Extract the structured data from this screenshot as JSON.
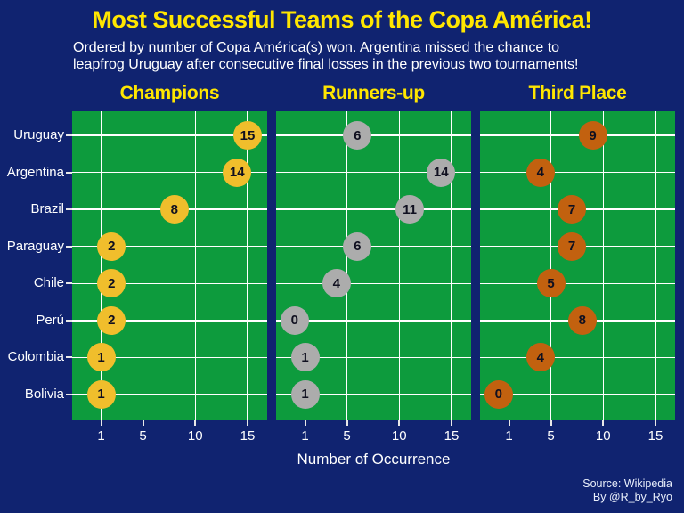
{
  "header": {
    "title": "Most Successful Teams of the Copa América!",
    "subtitle_line1": "Ordered by number of Copa América(s) won. Argentina missed the chance to",
    "subtitle_line2": "leapfrog Uruguay after consecutive final losses in the previous two tournaments!"
  },
  "chart_data": {
    "type": "scatter",
    "title": "Most Successful Teams of the Copa América!",
    "subtitle": "Ordered by number of Copa América(s) won. Argentina missed the chance to leapfrog Uruguay after consecutive final losses in the previous two tournaments!",
    "xlabel": "Number of Occurrence",
    "categories": [
      "Uruguay",
      "Argentina",
      "Brazil",
      "Paraguay",
      "Chile",
      "Perú",
      "Colombia",
      "Bolivia"
    ],
    "x_ticks": [
      1,
      5,
      10,
      15
    ],
    "x_range": [
      -1.8,
      16.9
    ],
    "grid": true,
    "legend_position": "none",
    "panels": [
      {
        "name": "Champions",
        "dot_color": "#F0BE2C",
        "values": [
          15,
          14,
          8,
          2,
          2,
          2,
          1,
          1
        ]
      },
      {
        "name": "Runners-up",
        "dot_color": "#ACACAC",
        "values": [
          6,
          14,
          11,
          6,
          4,
          0,
          1,
          1
        ]
      },
      {
        "name": "Third Place",
        "dot_color": "#C2610F",
        "values": [
          9,
          4,
          7,
          7,
          5,
          8,
          4,
          0
        ]
      }
    ]
  },
  "footer": {
    "source": "Source: Wikipedia",
    "byline": "By @R_by_Ryo"
  },
  "colors": {
    "background": "#102370",
    "panel_bg": "#0D9B3D",
    "grid": "#FFFFFF",
    "title": "#FFE600",
    "panel_title": "#FFE600",
    "subtitle": "#FFFFFF",
    "axis_text": "#FFFFFF",
    "tick": "#E8E8E8",
    "dot_label": "#101020",
    "footer_text": "#E9EFFB"
  }
}
